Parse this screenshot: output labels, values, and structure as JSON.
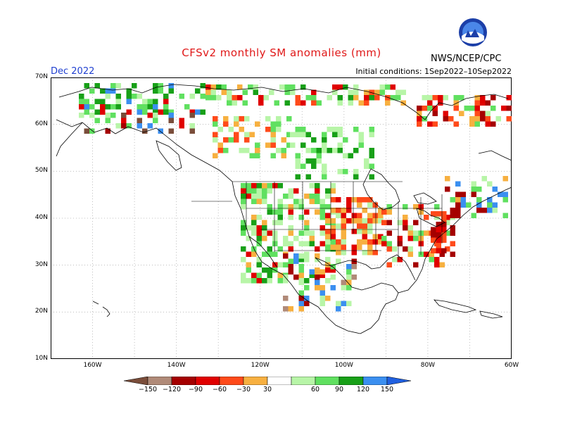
{
  "title": "CFSv2 monthly SM anomalies (mm)",
  "forecast_month": "Dec 2022",
  "initial_conditions": "Initial conditions: 1Sep2022–10Sep2022",
  "agency": "NWS/NCEP/CPC",
  "logo_text": "NOAA",
  "latitude_labels": [
    "70N",
    "60N",
    "50N",
    "40N",
    "30N",
    "20N",
    "10N"
  ],
  "longitude_labels": [
    "160W",
    "140W",
    "120W",
    "100W",
    "80W",
    "60W"
  ],
  "colorbar": {
    "ticks": [
      "−150",
      "−120",
      "−90",
      "−60",
      "−30",
      "30",
      "60",
      "90",
      "120",
      "150"
    ],
    "colors": [
      "#7a4d3a",
      "#b08a78",
      "#a50000",
      "#e00000",
      "#ff4a1a",
      "#f7b040",
      "#ffffff",
      "#b8f5a8",
      "#60e060",
      "#18a018",
      "#3b8ff0",
      "#2060e0"
    ],
    "units": "mm"
  },
  "map_extent": {
    "lon": [
      -170,
      -60
    ],
    "lat": [
      10,
      70
    ]
  }
}
